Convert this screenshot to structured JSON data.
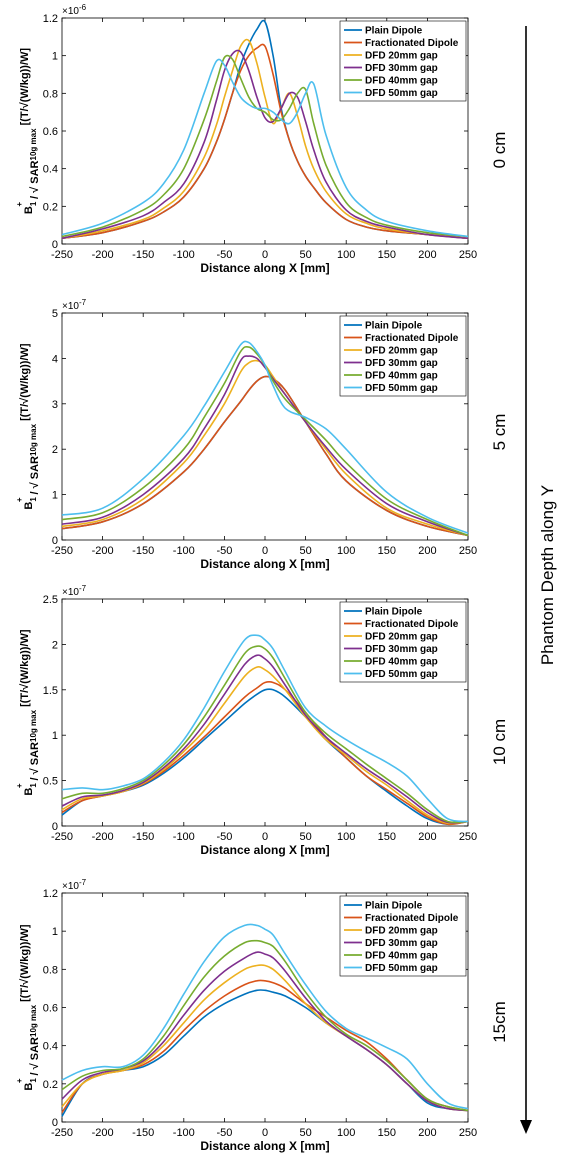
{
  "side_label": "Phantom Depth along Y",
  "colors": {
    "Plain Dipole": "#0072BD",
    "Fractionated Dipole": "#D95319",
    "DFD 20mm gap": "#EDB120",
    "DFD 30mm gap": "#7E2F8E",
    "DFD 40mm gap": "#77AC30",
    "DFD 50mm gap": "#4DBEEE"
  },
  "chart_data": [
    {
      "type": "line",
      "depth_label": "0 cm",
      "xlabel": "Distance along X [mm]",
      "ylabel_parts": [
        "B",
        "1",
        "+",
        " / √ SAR",
        "10g max",
        " [(T/√(W/kg))/W]"
      ],
      "xlim": [
        -250,
        250
      ],
      "ylim": [
        0,
        1.2
      ],
      "multiplier": "×10",
      "exponent": "-6",
      "xticks": [
        "-250",
        "-200",
        "-150",
        "-100",
        "-50",
        "0",
        "50",
        "100",
        "150",
        "200",
        "250"
      ],
      "yticks": [
        "0",
        "0.2",
        "0.4",
        "0.6",
        "0.8",
        "1",
        "1.2"
      ],
      "x": [
        -250,
        -200,
        -150,
        -125,
        -100,
        -75,
        -60,
        -50,
        -40,
        -30,
        -20,
        -10,
        0,
        10,
        20,
        30,
        40,
        50,
        60,
        75,
        100,
        125,
        150,
        200,
        250
      ],
      "series": [
        {
          "name": "Plain Dipole",
          "values": [
            0.03,
            0.06,
            0.12,
            0.17,
            0.25,
            0.4,
            0.54,
            0.66,
            0.8,
            0.95,
            1.06,
            1.14,
            1.18,
            1.0,
            0.72,
            0.55,
            0.44,
            0.36,
            0.3,
            0.22,
            0.13,
            0.09,
            0.07,
            0.05,
            0.03
          ]
        },
        {
          "name": "Fractionated Dipole",
          "values": [
            0.03,
            0.06,
            0.12,
            0.17,
            0.25,
            0.4,
            0.54,
            0.66,
            0.8,
            0.92,
            1.0,
            1.04,
            1.05,
            0.9,
            0.7,
            0.55,
            0.44,
            0.36,
            0.3,
            0.22,
            0.13,
            0.09,
            0.07,
            0.05,
            0.03
          ]
        },
        {
          "name": "DFD 20mm gap",
          "values": [
            0.03,
            0.07,
            0.13,
            0.19,
            0.28,
            0.46,
            0.63,
            0.78,
            0.92,
            1.05,
            1.08,
            0.96,
            0.78,
            0.64,
            0.72,
            0.8,
            0.68,
            0.52,
            0.4,
            0.28,
            0.16,
            0.11,
            0.08,
            0.05,
            0.03
          ]
        },
        {
          "name": "DFD 30mm gap",
          "values": [
            0.03,
            0.08,
            0.15,
            0.22,
            0.32,
            0.54,
            0.76,
            0.92,
            1.01,
            1.02,
            0.92,
            0.78,
            0.67,
            0.65,
            0.72,
            0.8,
            0.78,
            0.65,
            0.5,
            0.33,
            0.18,
            0.12,
            0.09,
            0.05,
            0.03
          ]
        },
        {
          "name": "DFD 40mm gap",
          "values": [
            0.04,
            0.09,
            0.18,
            0.26,
            0.4,
            0.66,
            0.86,
            0.99,
            0.98,
            0.88,
            0.78,
            0.72,
            0.7,
            0.66,
            0.66,
            0.72,
            0.8,
            0.82,
            0.64,
            0.42,
            0.22,
            0.14,
            0.1,
            0.06,
            0.04
          ]
        },
        {
          "name": "DFD 50mm gap",
          "values": [
            0.05,
            0.11,
            0.22,
            0.32,
            0.5,
            0.8,
            0.97,
            0.95,
            0.86,
            0.78,
            0.74,
            0.72,
            0.72,
            0.7,
            0.66,
            0.64,
            0.7,
            0.8,
            0.85,
            0.58,
            0.3,
            0.18,
            0.12,
            0.07,
            0.04
          ]
        }
      ]
    },
    {
      "type": "line",
      "depth_label": "5 cm",
      "xlabel": "Distance along X [mm]",
      "ylabel_parts": [
        "B",
        "1",
        "+",
        " / √ SAR",
        "10g max",
        " [(T/√(W/kg))/W]"
      ],
      "xlim": [
        -250,
        250
      ],
      "ylim": [
        0,
        5
      ],
      "multiplier": "×10",
      "exponent": "-7",
      "xticks": [
        "-250",
        "-200",
        "-150",
        "-100",
        "-50",
        "0",
        "50",
        "100",
        "150",
        "200",
        "250"
      ],
      "yticks": [
        "0",
        "1",
        "2",
        "3",
        "4",
        "5"
      ],
      "x": [
        -250,
        -200,
        -150,
        -100,
        -75,
        -50,
        -30,
        -20,
        -10,
        0,
        10,
        25,
        50,
        75,
        100,
        150,
        200,
        250
      ],
      "series": [
        {
          "name": "Plain Dipole",
          "values": [
            0.25,
            0.4,
            0.8,
            1.5,
            2.0,
            2.6,
            3.05,
            3.3,
            3.5,
            3.6,
            3.55,
            3.3,
            2.6,
            1.9,
            1.3,
            0.65,
            0.3,
            0.1
          ]
        },
        {
          "name": "Fractionated Dipole",
          "values": [
            0.25,
            0.4,
            0.8,
            1.5,
            2.0,
            2.6,
            3.05,
            3.3,
            3.5,
            3.6,
            3.55,
            3.3,
            2.6,
            1.9,
            1.3,
            0.65,
            0.3,
            0.1
          ]
        },
        {
          "name": "DFD 20mm gap",
          "values": [
            0.3,
            0.45,
            0.9,
            1.7,
            2.3,
            3.0,
            3.7,
            3.9,
            3.95,
            3.85,
            3.6,
            3.2,
            2.6,
            2.0,
            1.45,
            0.7,
            0.35,
            0.1
          ]
        },
        {
          "name": "DFD 30mm gap",
          "values": [
            0.35,
            0.5,
            1.0,
            1.8,
            2.45,
            3.2,
            3.95,
            4.05,
            4.0,
            3.8,
            3.55,
            3.2,
            2.6,
            2.05,
            1.55,
            0.8,
            0.4,
            0.1
          ]
        },
        {
          "name": "DFD 40mm gap",
          "values": [
            0.45,
            0.6,
            1.15,
            2.0,
            2.7,
            3.45,
            4.15,
            4.25,
            4.1,
            3.85,
            3.5,
            3.1,
            2.65,
            2.2,
            1.7,
            0.9,
            0.45,
            0.1
          ]
        },
        {
          "name": "DFD 50mm gap",
          "values": [
            0.55,
            0.7,
            1.35,
            2.3,
            2.95,
            3.7,
            4.3,
            4.35,
            4.15,
            3.85,
            3.4,
            2.9,
            2.7,
            2.45,
            2.0,
            1.05,
            0.5,
            0.15
          ]
        }
      ]
    },
    {
      "type": "line",
      "depth_label": "10 cm",
      "xlabel": "Distance along X [mm]",
      "ylabel_parts": [
        "B",
        "1",
        "+",
        " / √ SAR",
        "10g max",
        " [(T/√(W/kg))/W]"
      ],
      "xlim": [
        -250,
        250
      ],
      "ylim": [
        0,
        2.5
      ],
      "multiplier": "×10",
      "exponent": "-7",
      "xticks": [
        "-250",
        "-200",
        "-150",
        "-100",
        "-50",
        "0",
        "50",
        "100",
        "150",
        "200",
        "250"
      ],
      "yticks": [
        "0",
        "0.5",
        "1",
        "1.5",
        "2",
        "2.5"
      ],
      "x": [
        -250,
        -225,
        -200,
        -175,
        -150,
        -125,
        -100,
        -75,
        -50,
        -25,
        -10,
        0,
        10,
        25,
        50,
        75,
        100,
        125,
        150,
        175,
        200,
        225,
        250
      ],
      "series": [
        {
          "name": "Plain Dipole",
          "values": [
            0.12,
            0.28,
            0.33,
            0.38,
            0.45,
            0.58,
            0.75,
            0.95,
            1.15,
            1.35,
            1.45,
            1.5,
            1.5,
            1.42,
            1.2,
            0.95,
            0.75,
            0.55,
            0.38,
            0.22,
            0.08,
            0.02,
            0.05
          ]
        },
        {
          "name": "Fractionated Dipole",
          "values": [
            0.15,
            0.28,
            0.33,
            0.38,
            0.46,
            0.6,
            0.78,
            0.98,
            1.2,
            1.42,
            1.52,
            1.58,
            1.58,
            1.5,
            1.25,
            0.98,
            0.75,
            0.55,
            0.4,
            0.25,
            0.1,
            0.02,
            0.05
          ]
        },
        {
          "name": "DFD 20mm gap",
          "values": [
            0.18,
            0.3,
            0.33,
            0.38,
            0.47,
            0.62,
            0.82,
            1.05,
            1.35,
            1.65,
            1.75,
            1.72,
            1.65,
            1.5,
            1.2,
            0.95,
            0.78,
            0.6,
            0.45,
            0.28,
            0.12,
            0.03,
            0.05
          ]
        },
        {
          "name": "DFD 30mm gap",
          "values": [
            0.22,
            0.32,
            0.34,
            0.39,
            0.48,
            0.64,
            0.85,
            1.12,
            1.45,
            1.78,
            1.88,
            1.84,
            1.75,
            1.55,
            1.22,
            0.98,
            0.8,
            0.63,
            0.48,
            0.32,
            0.15,
            0.04,
            0.05
          ]
        },
        {
          "name": "DFD 40mm gap",
          "values": [
            0.3,
            0.36,
            0.36,
            0.41,
            0.5,
            0.67,
            0.9,
            1.2,
            1.55,
            1.9,
            1.98,
            1.95,
            1.85,
            1.62,
            1.25,
            1.02,
            0.85,
            0.68,
            0.52,
            0.36,
            0.18,
            0.05,
            0.05
          ]
        },
        {
          "name": "DFD 50mm gap",
          "values": [
            0.4,
            0.42,
            0.4,
            0.44,
            0.52,
            0.7,
            0.95,
            1.3,
            1.7,
            2.05,
            2.1,
            2.05,
            1.95,
            1.7,
            1.3,
            1.1,
            0.95,
            0.82,
            0.7,
            0.55,
            0.3,
            0.08,
            0.05
          ]
        }
      ]
    },
    {
      "type": "line",
      "depth_label": "15cm",
      "xlabel": "Distance along X [mm]",
      "ylabel_parts": [
        "B",
        "1",
        "+",
        " / √ SAR",
        "10g max",
        " [(T/√(W/kg))/W]"
      ],
      "xlim": [
        -250,
        250
      ],
      "ylim": [
        0,
        1.2
      ],
      "multiplier": "×10",
      "exponent": "-7",
      "xticks": [
        "-250",
        "-200",
        "-150",
        "-100",
        "-50",
        "0",
        "50",
        "100",
        "150",
        "200",
        "250"
      ],
      "yticks": [
        "0",
        "0.2",
        "0.4",
        "0.6",
        "0.8",
        "1",
        "1.2"
      ],
      "x": [
        -250,
        -225,
        -200,
        -175,
        -150,
        -125,
        -100,
        -75,
        -50,
        -25,
        -10,
        0,
        10,
        25,
        50,
        75,
        100,
        125,
        150,
        175,
        200,
        225,
        250
      ],
      "series": [
        {
          "name": "Plain Dipole",
          "values": [
            0.03,
            0.2,
            0.25,
            0.27,
            0.29,
            0.35,
            0.45,
            0.55,
            0.62,
            0.67,
            0.69,
            0.69,
            0.68,
            0.66,
            0.6,
            0.52,
            0.45,
            0.38,
            0.3,
            0.2,
            0.1,
            0.07,
            0.06
          ]
        },
        {
          "name": "Fractionated Dipole",
          "values": [
            0.05,
            0.2,
            0.25,
            0.27,
            0.3,
            0.37,
            0.48,
            0.58,
            0.66,
            0.72,
            0.74,
            0.74,
            0.73,
            0.7,
            0.62,
            0.55,
            0.48,
            0.42,
            0.33,
            0.22,
            0.12,
            0.08,
            0.06
          ]
        },
        {
          "name": "DFD 20mm gap",
          "values": [
            0.08,
            0.2,
            0.25,
            0.27,
            0.31,
            0.4,
            0.52,
            0.64,
            0.73,
            0.8,
            0.82,
            0.82,
            0.8,
            0.74,
            0.62,
            0.52,
            0.45,
            0.38,
            0.3,
            0.2,
            0.11,
            0.07,
            0.06
          ]
        },
        {
          "name": "DFD 30mm gap",
          "values": [
            0.12,
            0.22,
            0.26,
            0.28,
            0.32,
            0.42,
            0.56,
            0.69,
            0.79,
            0.86,
            0.89,
            0.88,
            0.86,
            0.79,
            0.65,
            0.53,
            0.45,
            0.38,
            0.3,
            0.2,
            0.11,
            0.07,
            0.06
          ]
        },
        {
          "name": "DFD 40mm gap",
          "values": [
            0.17,
            0.24,
            0.27,
            0.28,
            0.33,
            0.45,
            0.61,
            0.76,
            0.87,
            0.94,
            0.95,
            0.94,
            0.92,
            0.84,
            0.68,
            0.55,
            0.46,
            0.4,
            0.32,
            0.22,
            0.12,
            0.08,
            0.06
          ]
        },
        {
          "name": "DFD 50mm gap",
          "values": [
            0.22,
            0.27,
            0.29,
            0.29,
            0.35,
            0.49,
            0.67,
            0.84,
            0.97,
            1.03,
            1.03,
            1.01,
            0.98,
            0.88,
            0.72,
            0.58,
            0.49,
            0.44,
            0.39,
            0.33,
            0.2,
            0.1,
            0.07
          ]
        }
      ]
    }
  ]
}
